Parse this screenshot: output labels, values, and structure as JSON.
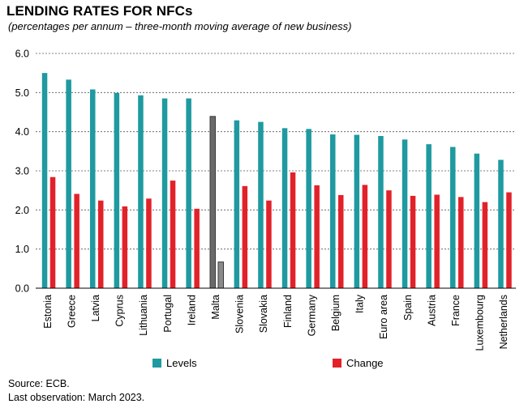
{
  "title": "LENDING RATES FOR NFCs",
  "subtitle": "(percentages per annum – three-month moving average of new business)",
  "source": "Source: ECB.",
  "last_observation": "Last observation: March 2023.",
  "colors": {
    "levels": "#1e9aa0",
    "change": "#e2222a",
    "highlight_levels": "#6a6a6a",
    "highlight_change": "#8a8a8a"
  },
  "chart_data": {
    "type": "bar",
    "categories": [
      "Estonia",
      "Greece",
      "Latvia",
      "Cyprus",
      "Lithuania",
      "Portugal",
      "Ireland",
      "Malta",
      "Slovenia",
      "Slovakia",
      "Finland",
      "Germany",
      "Belgium",
      "Italy",
      "Euro area",
      "Spain",
      "Austria",
      "France",
      "Luxembourg",
      "Netherlands"
    ],
    "series": [
      {
        "name": "Levels",
        "values": [
          5.5,
          5.33,
          5.08,
          4.99,
          4.93,
          4.85,
          4.85,
          4.39,
          4.29,
          4.25,
          4.09,
          4.07,
          3.93,
          3.92,
          3.89,
          3.8,
          3.68,
          3.61,
          3.44,
          3.28
        ]
      },
      {
        "name": "Change",
        "values": [
          2.84,
          2.41,
          2.24,
          2.09,
          2.29,
          2.75,
          2.03,
          0.67,
          2.61,
          2.24,
          2.96,
          2.63,
          2.38,
          2.64,
          2.5,
          2.36,
          2.39,
          2.33,
          2.2,
          2.45
        ]
      }
    ],
    "highlighted_category": "Malta",
    "ylim": [
      0,
      6
    ],
    "yticks": [
      "0.0",
      "1.0",
      "2.0",
      "3.0",
      "4.0",
      "5.0",
      "6.0"
    ],
    "grid": "horizontal dashed",
    "legend": "bottom"
  }
}
